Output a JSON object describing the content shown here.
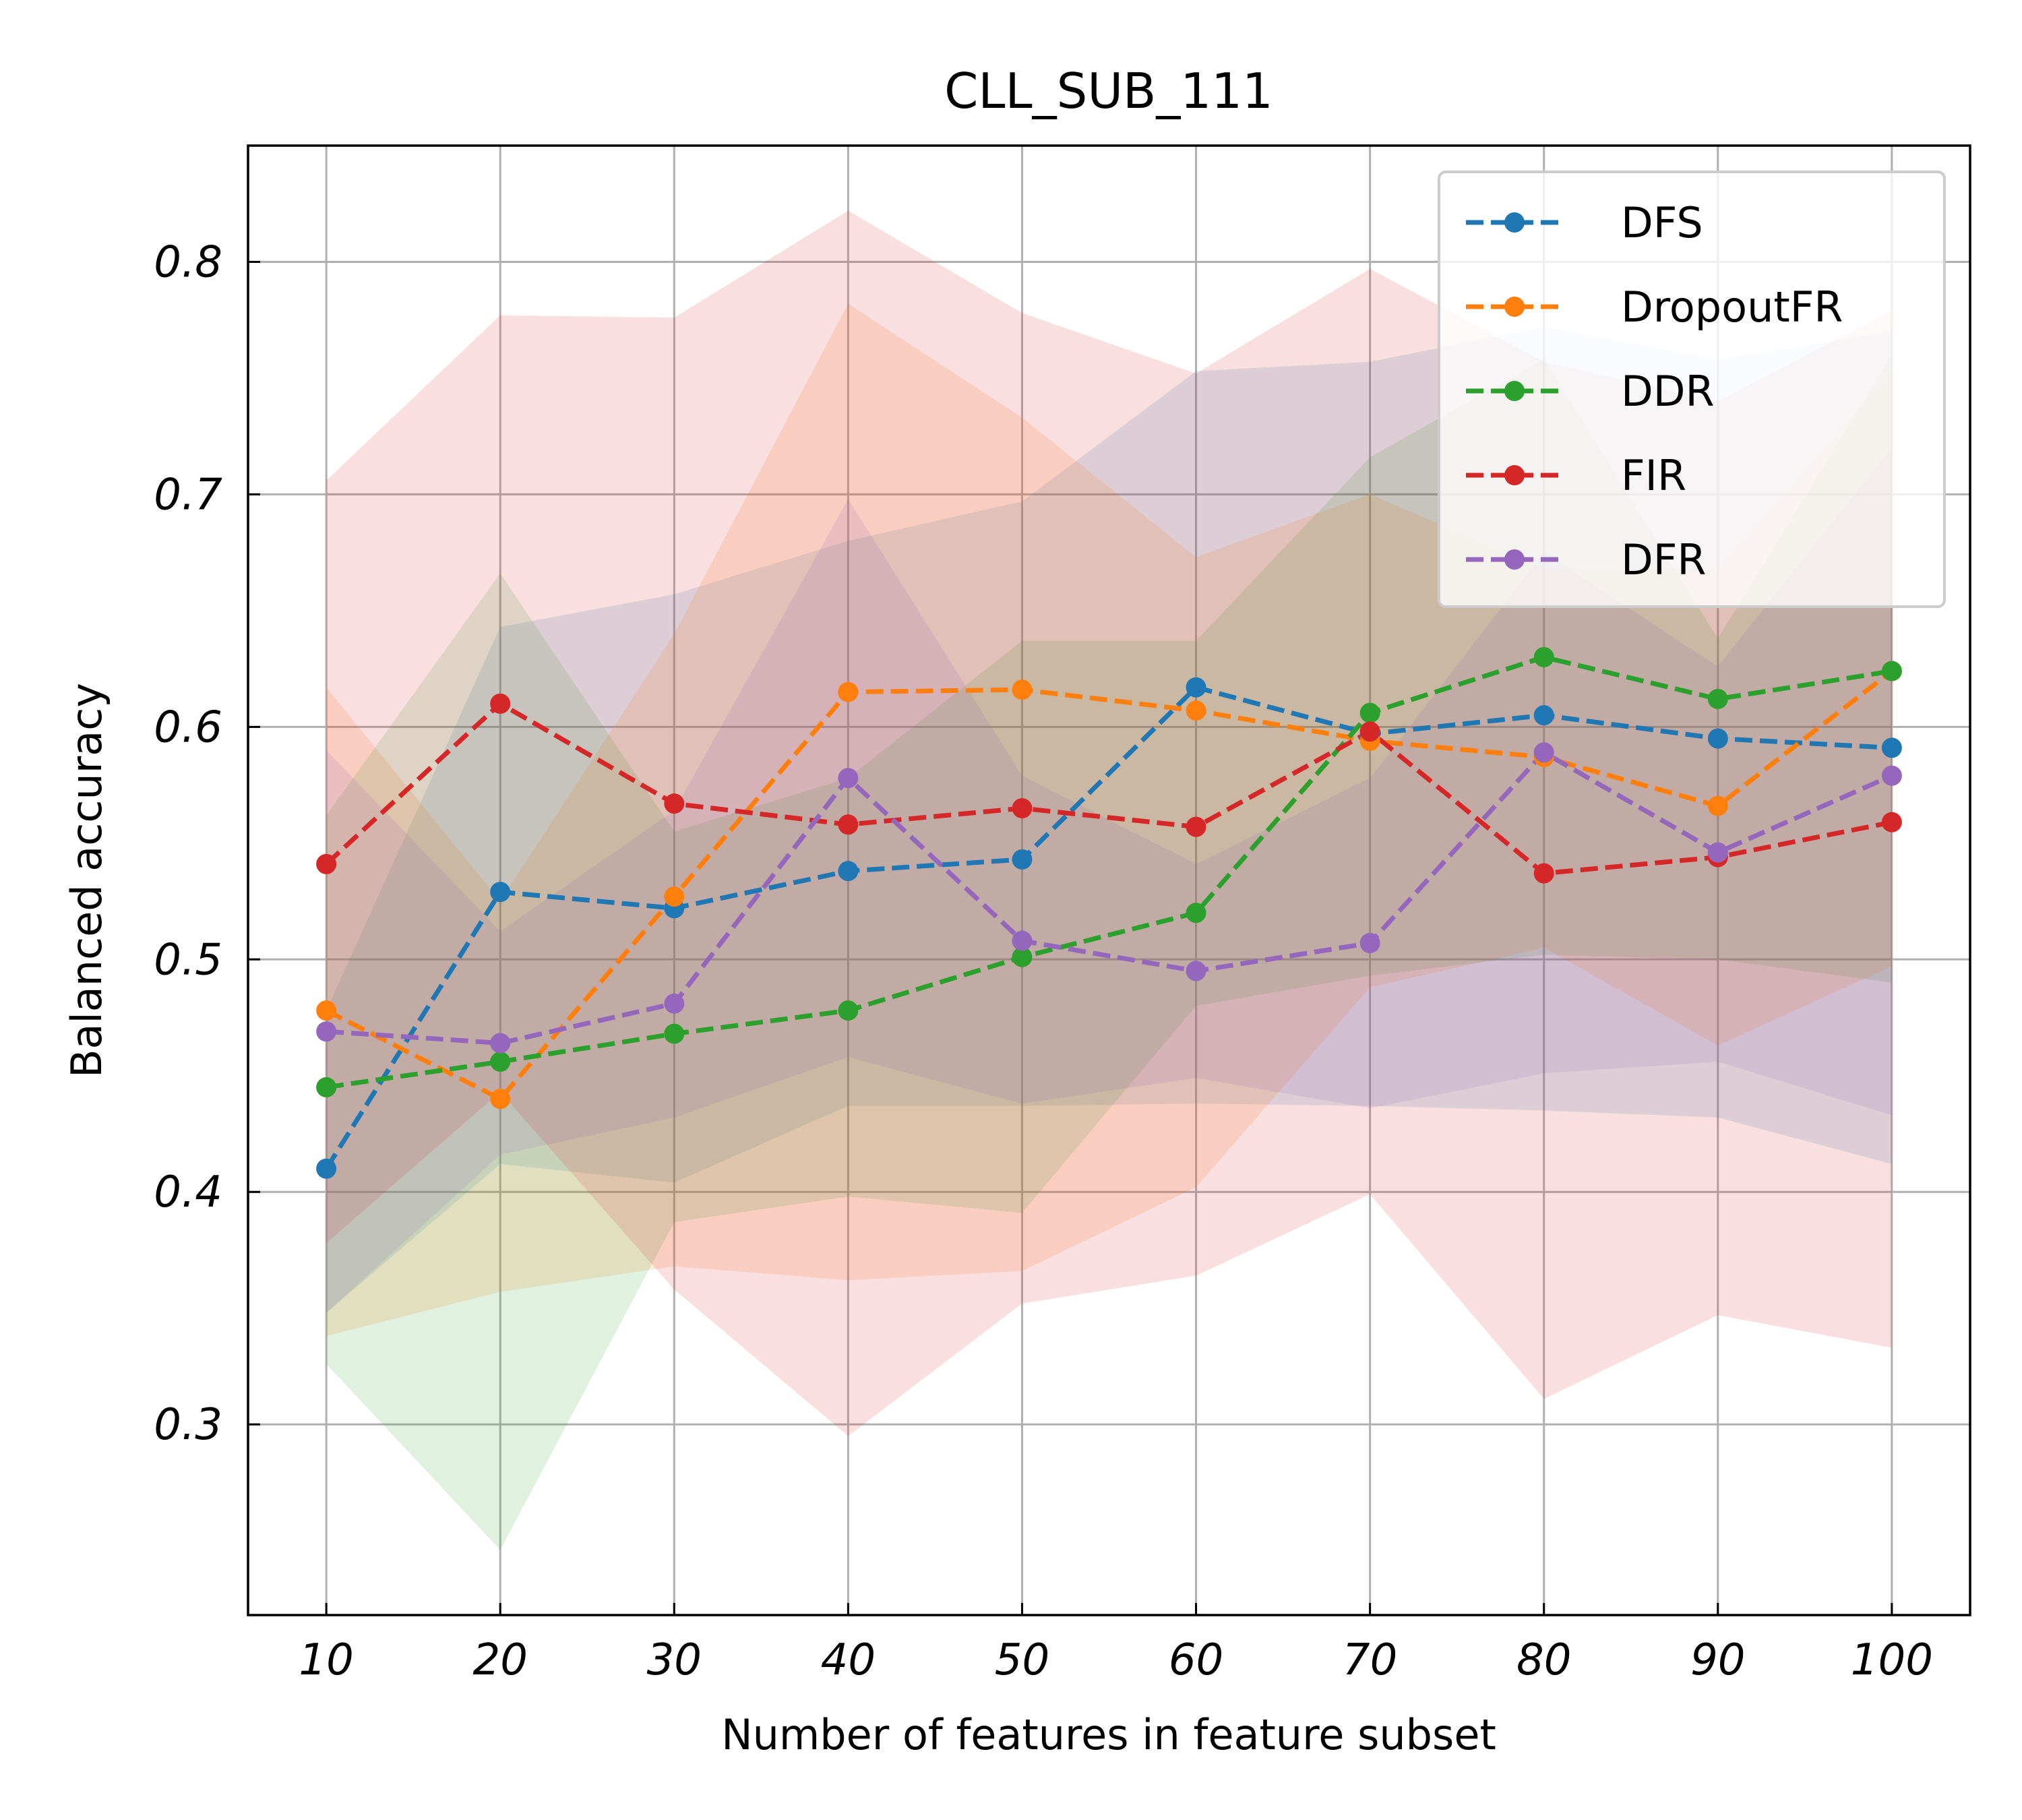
{
  "chart_data": {
    "type": "line",
    "title": "CLL_SUB_111",
    "xlabel": "Number of features in feature subset",
    "ylabel": "Balanced accuracy",
    "x": [
      10,
      20,
      30,
      40,
      50,
      60,
      70,
      80,
      90,
      100
    ],
    "xticks": [
      "10",
      "20",
      "30",
      "40",
      "50",
      "60",
      "70",
      "80",
      "90",
      "100"
    ],
    "yticks": [
      "0.3",
      "0.4",
      "0.5",
      "0.6",
      "0.7",
      "0.8"
    ],
    "xlim": [
      5.5,
      104.5
    ],
    "ylim": [
      0.218,
      0.85
    ],
    "grid": true,
    "legend_position": "top-right",
    "series": [
      {
        "name": "DFS",
        "color": "#1f77b4",
        "values": [
          0.41,
          0.529,
          0.522,
          0.538,
          0.543,
          0.617,
          0.597,
          0.605,
          0.595,
          0.591
        ],
        "upper": [
          0.478,
          0.643,
          0.657,
          0.68,
          0.697,
          0.753,
          0.757,
          0.772,
          0.758,
          0.77
        ],
        "lower": [
          0.348,
          0.412,
          0.404,
          0.437,
          0.437,
          0.438,
          0.437,
          0.435,
          0.432,
          0.412
        ]
      },
      {
        "name": "DropoutFR",
        "color": "#ff7f0e",
        "values": [
          0.478,
          0.44,
          0.527,
          0.615,
          0.616,
          0.607,
          0.594,
          0.587,
          0.566,
          0.624
        ],
        "upper": [
          0.617,
          0.525,
          0.64,
          0.782,
          0.733,
          0.673,
          0.7,
          0.668,
          0.668,
          0.752
        ],
        "lower": [
          0.338,
          0.357,
          0.368,
          0.362,
          0.366,
          0.402,
          0.488,
          0.505,
          0.463,
          0.497
        ]
      },
      {
        "name": "DDR",
        "color": "#2ca02c",
        "values": [
          0.445,
          0.456,
          0.468,
          0.478,
          0.501,
          0.52,
          0.606,
          0.63,
          0.612,
          0.624
        ],
        "upper": [
          0.562,
          0.666,
          0.555,
          0.578,
          0.637,
          0.637,
          0.716,
          0.758,
          0.638,
          0.76
        ],
        "lower": [
          0.326,
          0.246,
          0.387,
          0.398,
          0.391,
          0.48,
          0.493,
          0.502,
          0.5,
          0.49
        ]
      },
      {
        "name": "FIR",
        "color": "#d62728",
        "values": [
          0.541,
          0.61,
          0.567,
          0.558,
          0.565,
          0.557,
          0.598,
          0.537,
          0.544,
          0.559
        ],
        "upper": [
          0.706,
          0.777,
          0.776,
          0.822,
          0.778,
          0.752,
          0.797,
          0.757,
          0.74,
          0.779
        ],
        "lower": [
          0.378,
          0.443,
          0.358,
          0.295,
          0.352,
          0.364,
          0.399,
          0.311,
          0.347,
          0.333
        ]
      },
      {
        "name": "DFR",
        "color": "#9467bd",
        "values": [
          0.469,
          0.464,
          0.481,
          0.578,
          0.508,
          0.495,
          0.507,
          0.589,
          0.546,
          0.579
        ],
        "upper": [
          0.59,
          0.512,
          0.564,
          0.698,
          0.579,
          0.541,
          0.578,
          0.675,
          0.626,
          0.72
        ],
        "lower": [
          0.348,
          0.416,
          0.432,
          0.458,
          0.438,
          0.449,
          0.436,
          0.451,
          0.456,
          0.433
        ]
      }
    ]
  }
}
